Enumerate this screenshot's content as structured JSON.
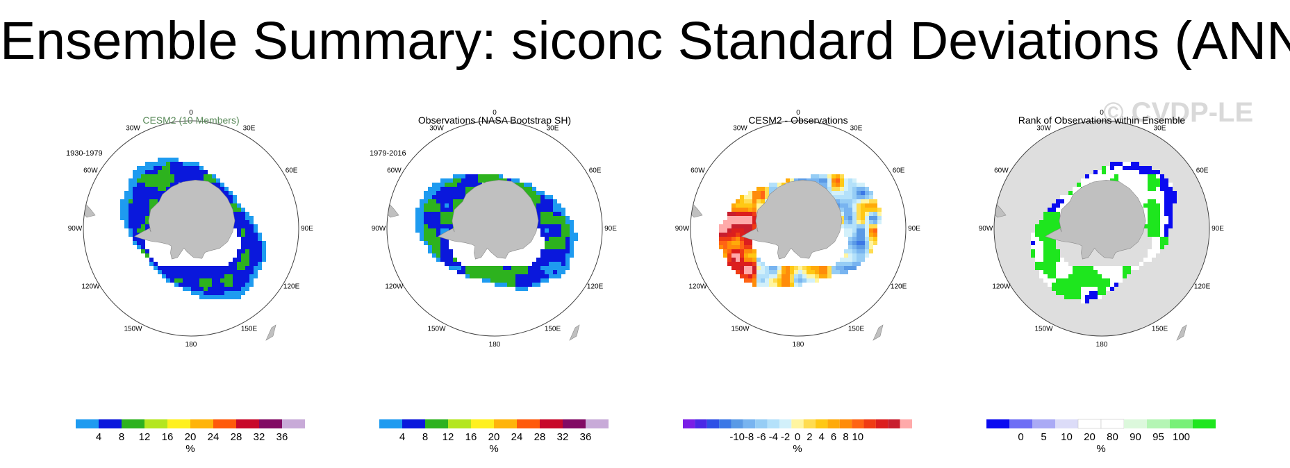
{
  "title": "Ensemble Summary: siconc Standard Deviations (ANN)",
  "watermark": "© CVDP-LE",
  "lon_labels": [
    "0",
    "30E",
    "60E",
    "90E",
    "120E",
    "150E",
    "180",
    "150W",
    "120W",
    "90W",
    "60W",
    "30W"
  ],
  "panels": [
    {
      "title": "CESM2 (10 Members)",
      "title_color": "#5a8a5a",
      "period": "1930-1979",
      "map_background": "#ffffff",
      "field": "sd_model",
      "colorbar": {
        "unit": "%",
        "colors": [
          "#1e9bf0",
          "#0a18dc",
          "#2db21e",
          "#b4e61e",
          "#fff01e",
          "#ffb40a",
          "#ff5a0a",
          "#c8082a",
          "#820a64",
          "#c8aad8"
        ],
        "labels": [
          "4",
          "8",
          "12",
          "16",
          "20",
          "24",
          "28",
          "32",
          "36"
        ]
      }
    },
    {
      "title": "Observations (NASA Bootstrap SH)",
      "title_color": "#000000",
      "period": "1979-2016",
      "map_background": "#ffffff",
      "field": "sd_obs",
      "colorbar": {
        "unit": "%",
        "colors": [
          "#1e9bf0",
          "#0a18dc",
          "#2db21e",
          "#b4e61e",
          "#fff01e",
          "#ffb40a",
          "#ff5a0a",
          "#c8082a",
          "#820a64",
          "#c8aad8"
        ],
        "labels": [
          "4",
          "8",
          "12",
          "16",
          "20",
          "24",
          "28",
          "32",
          "36"
        ]
      }
    },
    {
      "title": "CESM2 - Observations",
      "title_color": "#000000",
      "period": "",
      "map_background": "#ffffff",
      "field": "diff",
      "colorbar": {
        "unit": "%",
        "colors": [
          "#7a1ee6",
          "#4a28e6",
          "#2e50e6",
          "#3c78e6",
          "#5a9ae6",
          "#78b4f0",
          "#96cdf5",
          "#b4e1fa",
          "#d2f0fa",
          "#fff5a0",
          "#ffdc50",
          "#ffc814",
          "#ffaa0a",
          "#ff8c0a",
          "#ff6414",
          "#f03c14",
          "#dc1e1e",
          "#c81e2e",
          "#ffaaaa"
        ],
        "labels": [
          "-10",
          "-8",
          "-6",
          "-4",
          "-2",
          "0",
          "2",
          "4",
          "6",
          "8",
          "10"
        ]
      }
    },
    {
      "title": "Rank of Observations within Ensemble",
      "title_color": "#000000",
      "period": "",
      "map_background": "#dedede",
      "field": "rank",
      "colorbar": {
        "unit": "%",
        "colors": [
          "#0a0af0",
          "#6e6ef5",
          "#aaaaf5",
          "#dcdcf8",
          "#ffffff",
          "#ffffff",
          "#dcf8dc",
          "#b4f5b4",
          "#78f078",
          "#1ee61e"
        ],
        "labels": [
          "0",
          "5",
          "10",
          "20",
          "80",
          "90",
          "95",
          "100"
        ]
      }
    }
  ]
}
